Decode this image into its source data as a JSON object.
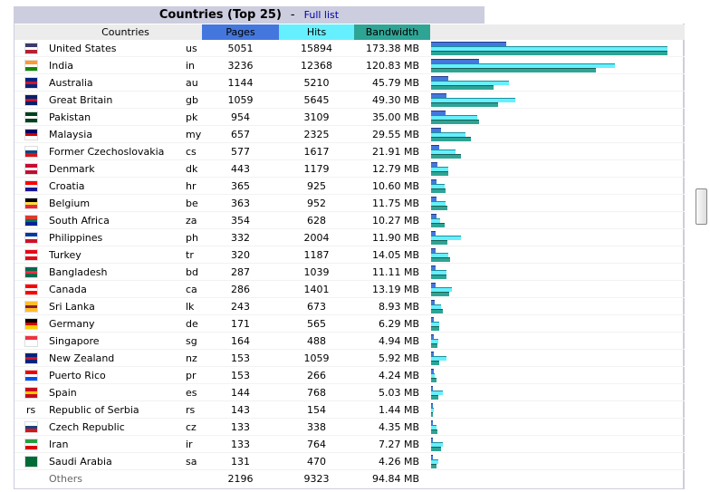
{
  "title": {
    "text": "Countries (Top 25)",
    "separator": "-",
    "full_list": "Full list"
  },
  "headers": {
    "countries": "Countries",
    "pages": "Pages",
    "hits": "Hits",
    "bandwidth": "Bandwidth"
  },
  "colors": {
    "pages": "#4477dd",
    "hits": "#66f0ff",
    "bandwidth": "#2ea495",
    "title_bg": "#cccdde"
  },
  "bar_maxima": {
    "hits_pages": 15894,
    "bandwidth_mb": 173.38
  },
  "rows": [
    {
      "name": "United States",
      "code": "us",
      "pages": "5051",
      "hits": "15894",
      "bw": "173.38 MB",
      "flag": [
        "#3c3b6e",
        "#ffffff",
        "#b22234"
      ]
    },
    {
      "name": "India",
      "code": "in",
      "pages": "3236",
      "hits": "12368",
      "bw": "120.83 MB",
      "flag": [
        "#ff9933",
        "#ffffff",
        "#138808"
      ]
    },
    {
      "name": "Australia",
      "code": "au",
      "pages": "1144",
      "hits": "5210",
      "bw": "45.79 MB",
      "flag": [
        "#00247d",
        "#cf142b",
        "#00247d"
      ]
    },
    {
      "name": "Great Britain",
      "code": "gb",
      "pages": "1059",
      "hits": "5645",
      "bw": "49.30 MB",
      "flag": [
        "#012169",
        "#c8102e",
        "#012169"
      ]
    },
    {
      "name": "Pakistan",
      "code": "pk",
      "pages": "954",
      "hits": "3109",
      "bw": "35.00 MB",
      "flag": [
        "#01411c",
        "#ffffff",
        "#01411c"
      ]
    },
    {
      "name": "Malaysia",
      "code": "my",
      "pages": "657",
      "hits": "2325",
      "bw": "29.55 MB",
      "flag": [
        "#010066",
        "#cc0001",
        "#ffffff"
      ]
    },
    {
      "name": "Former Czechoslovakia",
      "code": "cs",
      "pages": "577",
      "hits": "1617",
      "bw": "21.91 MB",
      "flag": [
        "#ffffff",
        "#11457e",
        "#d7141a"
      ]
    },
    {
      "name": "Denmark",
      "code": "dk",
      "pages": "443",
      "hits": "1179",
      "bw": "12.79 MB",
      "flag": [
        "#c60c30",
        "#ffffff",
        "#c60c30"
      ]
    },
    {
      "name": "Croatia",
      "code": "hr",
      "pages": "365",
      "hits": "925",
      "bw": "10.60 MB",
      "flag": [
        "#ff0000",
        "#ffffff",
        "#171796"
      ]
    },
    {
      "name": "Belgium",
      "code": "be",
      "pages": "363",
      "hits": "952",
      "bw": "11.75 MB",
      "flag": [
        "#000000",
        "#fae042",
        "#ed2939"
      ]
    },
    {
      "name": "South Africa",
      "code": "za",
      "pages": "354",
      "hits": "628",
      "bw": "10.27 MB",
      "flag": [
        "#de3831",
        "#007a4d",
        "#002395"
      ]
    },
    {
      "name": "Philippines",
      "code": "ph",
      "pages": "332",
      "hits": "2004",
      "bw": "11.90 MB",
      "flag": [
        "#0038a8",
        "#ffffff",
        "#ce1126"
      ]
    },
    {
      "name": "Turkey",
      "code": "tr",
      "pages": "320",
      "hits": "1187",
      "bw": "14.05 MB",
      "flag": [
        "#e30a17",
        "#ffffff",
        "#e30a17"
      ]
    },
    {
      "name": "Bangladesh",
      "code": "bd",
      "pages": "287",
      "hits": "1039",
      "bw": "11.11 MB",
      "flag": [
        "#006a4e",
        "#f42a41",
        "#006a4e"
      ]
    },
    {
      "name": "Canada",
      "code": "ca",
      "pages": "286",
      "hits": "1401",
      "bw": "13.19 MB",
      "flag": [
        "#ff0000",
        "#ffffff",
        "#ff0000"
      ]
    },
    {
      "name": "Sri Lanka",
      "code": "lk",
      "pages": "243",
      "hits": "673",
      "bw": "8.93 MB",
      "flag": [
        "#ffbe29",
        "#8d153a",
        "#ffbe29"
      ]
    },
    {
      "name": "Germany",
      "code": "de",
      "pages": "171",
      "hits": "565",
      "bw": "6.29 MB",
      "flag": [
        "#000000",
        "#dd0000",
        "#ffce00"
      ]
    },
    {
      "name": "Singapore",
      "code": "sg",
      "pages": "164",
      "hits": "488",
      "bw": "4.94 MB",
      "flag": [
        "#ef3340",
        "#ffffff",
        "#ffffff"
      ]
    },
    {
      "name": "New Zealand",
      "code": "nz",
      "pages": "153",
      "hits": "1059",
      "bw": "5.92 MB",
      "flag": [
        "#00247d",
        "#cc142b",
        "#00247d"
      ]
    },
    {
      "name": "Puerto Rico",
      "code": "pr",
      "pages": "153",
      "hits": "266",
      "bw": "4.24 MB",
      "flag": [
        "#ed0000",
        "#ffffff",
        "#0050f0"
      ]
    },
    {
      "name": "Spain",
      "code": "es",
      "pages": "144",
      "hits": "768",
      "bw": "5.03 MB",
      "flag": [
        "#c60b1e",
        "#ffc400",
        "#c60b1e"
      ]
    },
    {
      "name": "Republic of Serbia",
      "code": "rs",
      "pages": "143",
      "hits": "154",
      "bw": "1.44 MB",
      "flag_text": "rs"
    },
    {
      "name": "Czech Republic",
      "code": "cz",
      "pages": "133",
      "hits": "338",
      "bw": "4.35 MB",
      "flag": [
        "#ffffff",
        "#11457e",
        "#d7141a"
      ]
    },
    {
      "name": "Iran",
      "code": "ir",
      "pages": "133",
      "hits": "764",
      "bw": "7.27 MB",
      "flag": [
        "#239f40",
        "#ffffff",
        "#da0000"
      ]
    },
    {
      "name": "Saudi Arabia",
      "code": "sa",
      "pages": "131",
      "hits": "470",
      "bw": "4.26 MB",
      "flag": [
        "#006c35",
        "#006c35",
        "#006c35"
      ]
    }
  ],
  "others": {
    "name": "Others",
    "pages": "2196",
    "hits": "9323",
    "bw": "94.84 MB"
  }
}
